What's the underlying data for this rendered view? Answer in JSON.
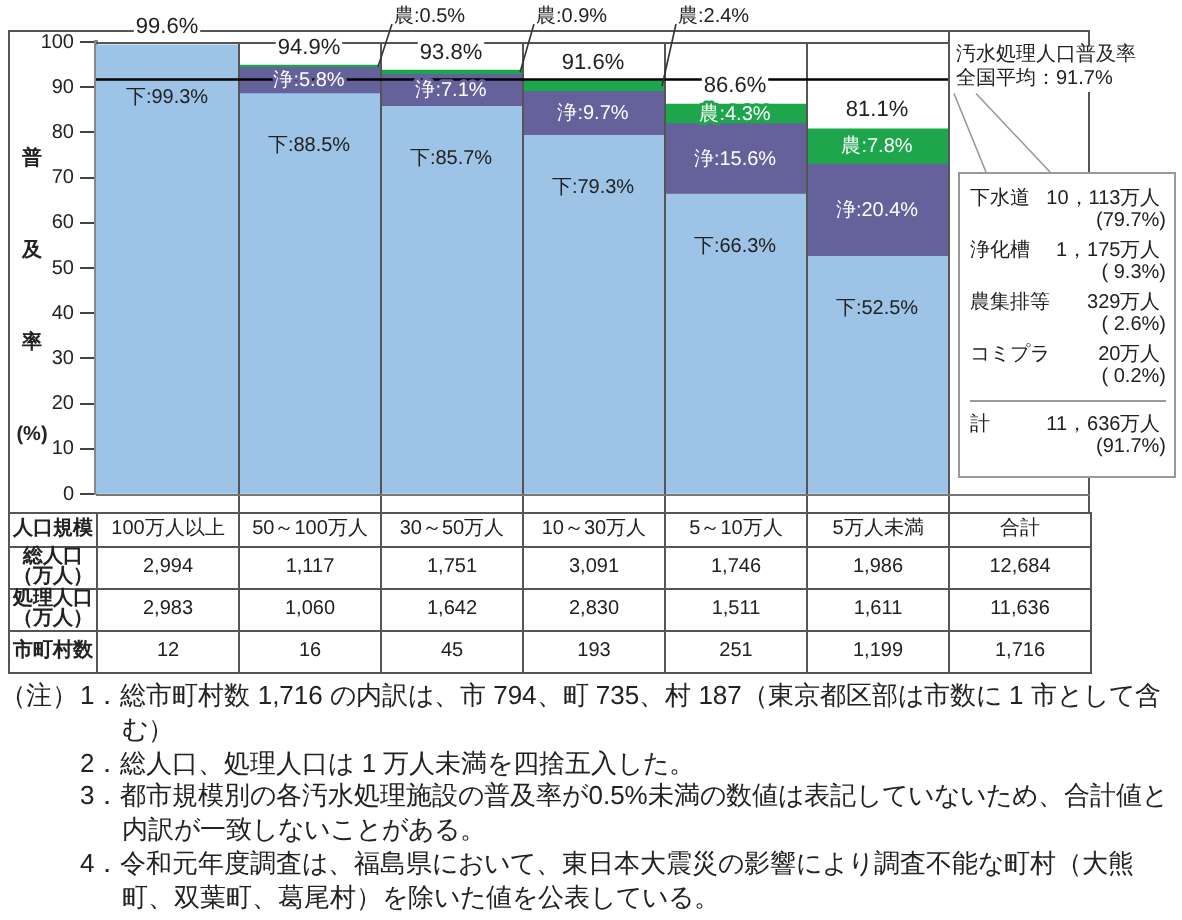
{
  "chart_data": [
    {
      "type": "bar",
      "stacked": true,
      "xlabel": "人口規模",
      "ylabel": "普及率(%)",
      "categories": [
        "100万人以上",
        "50～100万人",
        "30～50万人",
        "10～30万人",
        "5～10万人",
        "5万人未満",
        "合計"
      ],
      "series": [
        {
          "color": "#9dc3e6",
          "values": [
            99.3,
            88.5,
            85.7,
            79.3,
            66.3,
            52.5,
            null
          ],
          "value_labels": [
            "下:99.3%",
            "下:88.5%",
            "下:85.7%",
            "下:79.3%",
            "下:66.3%",
            "下:52.5%",
            null
          ]
        },
        {
          "color": "#65619b",
          "values": [
            null,
            5.8,
            7.1,
            9.7,
            15.6,
            20.4,
            null
          ],
          "value_labels": [
            null,
            "浄:5.8%",
            "浄:7.1%",
            "浄:9.7%",
            "浄:15.6%",
            "浄:20.4%",
            null
          ]
        },
        {
          "color": "#1da64b",
          "values": [
            null,
            0.5,
            0.9,
            2.4,
            4.3,
            7.8,
            null
          ],
          "value_labels": [
            null,
            "農:0.5%",
            "農:0.9%",
            "農:2.4%",
            "農:4.3%",
            "農:7.8%",
            null
          ]
        }
      ],
      "ylim": [
        0,
        100
      ],
      "yticks": [
        0,
        10,
        20,
        30,
        40,
        50,
        60,
        70,
        80,
        90,
        100
      ],
      "ref_lines": [
        {
          "axis": "y",
          "value": 91.7,
          "label": "汚水処理人口普及率全国平均：91.7%",
          "color": "#000000"
        }
      ],
      "annotations": [
        {
          "text": "99.6%",
          "x": "100万人以上",
          "y": 99.6
        },
        {
          "text": "94.9%",
          "x": "50～100万人",
          "y": 94.9
        },
        {
          "text": "93.8%",
          "x": "30～50万人",
          "y": 93.8
        },
        {
          "text": "91.6%",
          "x": "10～30万人",
          "y": 91.6
        },
        {
          "text": "86.6%",
          "x": "5～10万人",
          "y": 86.6
        },
        {
          "text": "81.1%",
          "x": "5万人未満",
          "y": 81.1
        },
        "（注）",
        "1．総市町村数 1,716 の内訳は、市 794、町 735、村 187（東京都区部は市数に 1 市として含む）",
        "2．総人口、処理人口は 1 万人未満を四捨五入した。",
        "3．都市規模別の各汚水処理施設の普及率が0.5%未満の数値は表記していないため、合計値と内訳が一致しないことがある。",
        "4．令和元年度調査は、福島県において、東日本大震災の影響により調査不能な町村（大熊町、双葉町、葛尾村）を除いた値を公表している。"
      ]
    },
    {
      "type": "other",
      "annotations": [
        "総人口（万人）",
        "2,994",
        "1,117",
        "1,751",
        "3,091",
        "1,746",
        "1,986",
        "12,684",
        "処理人口（万人）",
        "2,983",
        "1,060",
        "1,642",
        "2,830",
        "1,511",
        "1,611",
        "11,636",
        "市町村数",
        "12",
        "16",
        "45",
        "193",
        "251",
        "1,199",
        "1,716"
      ]
    },
    {
      "type": "other",
      "annotations": [
        "下水道 10，113万人 (79.7%)",
        "浄化槽 1，175万人 ( 9.3%)",
        "農集排等 329万人 ( 2.6%)",
        "コミプラ 20万人 ( 0.2%)",
        "計 11，636万人 (91.7%)"
      ]
    }
  ]
}
